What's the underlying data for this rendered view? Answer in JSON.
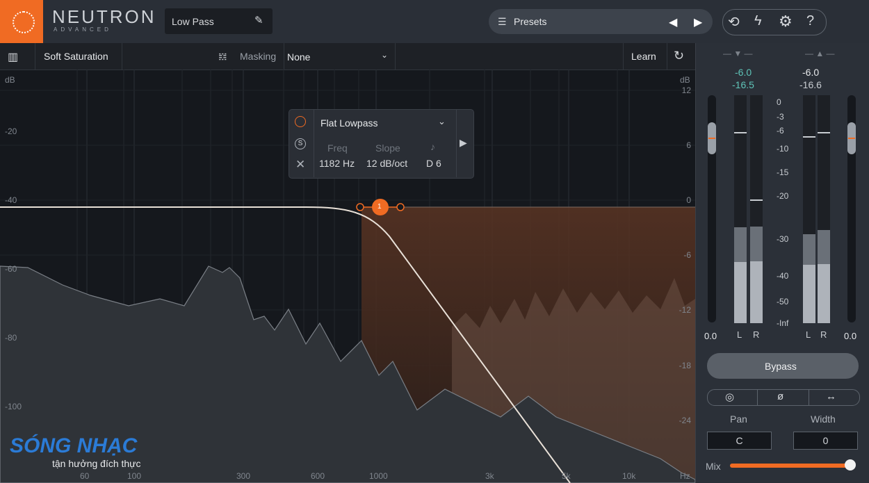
{
  "header": {
    "brand": "NEUTRON",
    "edition": "ADVANCED",
    "preset_name": "Low Pass",
    "presets": "Presets"
  },
  "toolbar": {
    "module": "Soft Saturation",
    "masking": "Masking",
    "masking_target": "None",
    "learn": "Learn"
  },
  "eq": {
    "db_unit_left": "dB",
    "db_left": [
      "-20",
      "-40",
      "-60",
      "-80",
      "-100"
    ],
    "db_unit_right": "dB",
    "db_right": [
      "12",
      "6",
      "0",
      "-6",
      "-12",
      "-18",
      "-24"
    ],
    "freq_labels": [
      "60",
      "100",
      "300",
      "600",
      "1000",
      "3k",
      "5k",
      "10k"
    ],
    "hz": "Hz",
    "node": "1"
  },
  "band_popup": {
    "shape": "Flat Lowpass",
    "solo": "S",
    "freq_label": "Freq",
    "slope_label": "Slope",
    "freq": "1182 Hz",
    "slope": "12 dB/oct",
    "note": "D 6"
  },
  "meters": {
    "input_peak": "-6.0",
    "input_rms": "-16.5",
    "output_peak": "-6.0",
    "output_rms": "-16.6",
    "scale": [
      "0",
      "-3",
      "-6",
      "-10",
      "-15",
      "-20",
      "-30",
      "-40",
      "-50",
      "-Inf"
    ],
    "input_gain": "0.0",
    "output_gain": "0.0",
    "channels": [
      "L",
      "R",
      "L",
      "R"
    ]
  },
  "controls": {
    "bypass": "Bypass",
    "pan_label": "Pan",
    "width_label": "Width",
    "pan": "C",
    "width": "0",
    "mix_label": "Mix"
  },
  "watermark": {
    "brand": "SÓNG NHẠC",
    "tagline": "tận hưởng đích thực"
  }
}
